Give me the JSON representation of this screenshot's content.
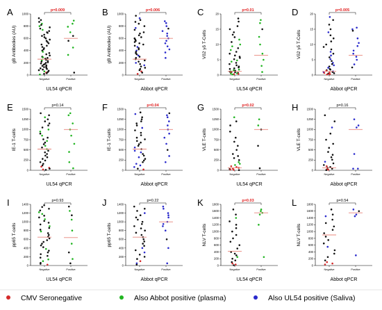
{
  "colors": {
    "red": "#d42a2a",
    "green": "#22b522",
    "blue": "#2a2acc",
    "black": "#111111",
    "median_line": "#e8847a",
    "sig_text": "#e01c1c",
    "nonsig_text": "#000000"
  },
  "legend": [
    {
      "label": "CMV Seronegative",
      "color": "red"
    },
    {
      "label": "Also Abbot positive (plasma)",
      "color": "green"
    },
    {
      "label": "Also UL54 positive (Saliva)",
      "color": "blue"
    }
  ],
  "chart_data": [
    {
      "id": "A",
      "type": "scatter",
      "title": "",
      "letter": "A",
      "ylabel": "gB Antibodies (AU)",
      "xlabel": "UL54 qPCR",
      "categories": [
        "Negative",
        "Positive"
      ],
      "ylim": [
        0,
        1000
      ],
      "yticks": [
        0,
        200,
        400,
        600,
        800,
        1000
      ],
      "pvalue": "p=0.009",
      "significant": true,
      "pos_color": "green",
      "medians": [
        260,
        600
      ],
      "series": [
        {
          "name": "Negative",
          "values": [
            930,
            900,
            870,
            840,
            820,
            800,
            780,
            760,
            740,
            720,
            700,
            690,
            660,
            640,
            620,
            600,
            580,
            560,
            540,
            520,
            500,
            480,
            460,
            440,
            420,
            400,
            380,
            360,
            340,
            320,
            300,
            290,
            280,
            270,
            260,
            250,
            240,
            230,
            220,
            210,
            200,
            190,
            180,
            170,
            160,
            150,
            140,
            130,
            120,
            110,
            100,
            90,
            80,
            70,
            60,
            50,
            40,
            30,
            20,
            10
          ]
        },
        {
          "name": "Positive",
          "values": [
            890,
            840,
            790,
            700,
            640,
            560,
            450,
            330,
            40
          ]
        }
      ]
    },
    {
      "id": "B",
      "type": "scatter",
      "title": "",
      "letter": "B",
      "ylabel": "gB Antibodies (AU)",
      "xlabel": "Abbot qPCR",
      "categories": [
        "Negative",
        "Positive"
      ],
      "ylim": [
        0,
        1000
      ],
      "yticks": [
        0,
        200,
        400,
        600,
        800,
        1000
      ],
      "pvalue": "p=0.006",
      "significant": true,
      "pos_color": "blue",
      "medians": [
        260,
        600
      ],
      "series": [
        {
          "name": "Negative",
          "values": [
            970,
            930,
            900,
            870,
            840,
            800,
            770,
            740,
            700,
            680,
            650,
            620,
            600,
            580,
            560,
            540,
            520,
            500,
            480,
            460,
            440,
            420,
            400,
            380,
            360,
            340,
            320,
            300,
            280,
            260,
            240,
            220,
            200,
            180,
            160,
            140,
            120,
            100,
            80,
            60,
            40,
            20
          ]
        },
        {
          "name": "Positive",
          "values": [
            880,
            850,
            800,
            760,
            720,
            680,
            640,
            600,
            560,
            520,
            470,
            420,
            370,
            280
          ]
        }
      ]
    },
    {
      "id": "C",
      "type": "scatter",
      "title": "",
      "letter": "C",
      "ylabel": "Vδ2 γδ T-Cells",
      "xlabel": "UL54 qPCR",
      "categories": [
        "Negative",
        "Positive"
      ],
      "ylim": [
        0,
        20
      ],
      "yticks": [
        0,
        5,
        10,
        15,
        20
      ],
      "pvalue": "p=0.01",
      "significant": true,
      "pos_color": "green",
      "medians": [
        1.2,
        6.5
      ],
      "series": [
        {
          "name": "Negative",
          "values": [
            18.5,
            17.5,
            16,
            15,
            14,
            13.2,
            12.4,
            11.6,
            10.8,
            10,
            9.4,
            8.8,
            8.2,
            7.6,
            7,
            6.4,
            6,
            5.6,
            5.2,
            4.8,
            4.4,
            4,
            3.6,
            3.2,
            2.8,
            2.5,
            2.2,
            2,
            1.8,
            1.6,
            1.4,
            1.2,
            1.1,
            1,
            0.9,
            0.8,
            0.7,
            0.6,
            0.5,
            0.4,
            0.3,
            0.2
          ]
        },
        {
          "name": "Positive",
          "values": [
            18,
            17,
            15,
            12.5,
            10,
            7,
            5,
            3,
            1
          ]
        }
      ]
    },
    {
      "id": "D",
      "type": "scatter",
      "title": "",
      "letter": "D",
      "ylabel": "Vδ2 γδ T-Cells",
      "xlabel": "Abbot qPCR",
      "categories": [
        "Negative",
        "Positive"
      ],
      "ylim": [
        0,
        20
      ],
      "yticks": [
        0,
        5,
        10,
        15,
        20
      ],
      "pvalue": "p=0.005",
      "significant": true,
      "pos_color": "blue",
      "medians": [
        1.2,
        6.5
      ],
      "series": [
        {
          "name": "Negative",
          "values": [
            19,
            18,
            16.5,
            15,
            14,
            13,
            12,
            11,
            10,
            9.2,
            8.4,
            7.6,
            7,
            6.4,
            5.8,
            5.2,
            4.6,
            4,
            3.6,
            3.2,
            2.8,
            2.4,
            2,
            1.8,
            1.6,
            1.4,
            1.2,
            1,
            0.9,
            0.8,
            0.7,
            0.6,
            0.5,
            0.4,
            0.3,
            0.2
          ]
        },
        {
          "name": "Positive",
          "values": [
            15.5,
            15,
            14.5,
            12,
            10.5,
            9.5,
            8,
            7,
            6,
            5,
            3.5,
            2.5
          ]
        }
      ]
    },
    {
      "id": "E",
      "type": "scatter",
      "title": "",
      "letter": "E",
      "ylabel": "IE-1 T-cells",
      "xlabel": "UL54 qPCR",
      "categories": [
        "Negative",
        "Positive"
      ],
      "ylim": [
        0,
        1500
      ],
      "yticks": [
        0,
        250,
        500,
        750,
        1000,
        1250,
        1500
      ],
      "pvalue": "p=0.14",
      "significant": false,
      "pos_color": "green",
      "medians": [
        520,
        1000
      ],
      "series": [
        {
          "name": "Negative",
          "values": [
            1400,
            1350,
            1300,
            1250,
            1200,
            1150,
            1100,
            1050,
            1000,
            950,
            900,
            850,
            800,
            760,
            720,
            680,
            640,
            600,
            560,
            520,
            480,
            440,
            400,
            360,
            320,
            280,
            240,
            200,
            160,
            120,
            90,
            60,
            40,
            20,
            10
          ]
        },
        {
          "name": "Positive",
          "values": [
            1400,
            1350,
            1150,
            1000,
            850,
            650,
            450,
            200,
            50
          ]
        }
      ]
    },
    {
      "id": "F",
      "type": "scatter",
      "title": "",
      "letter": "F",
      "ylabel": "IE-1 T-cells",
      "xlabel": "Abbot qPCR",
      "categories": [
        "Negative",
        "Positive"
      ],
      "ylim": [
        0,
        1500
      ],
      "yticks": [
        0,
        250,
        500,
        750,
        1000,
        1250,
        1500
      ],
      "pvalue": "p=0.04",
      "significant": true,
      "pos_color": "blue",
      "medians": [
        520,
        1000
      ],
      "series": [
        {
          "name": "Negative",
          "values": [
            1420,
            1380,
            1300,
            1250,
            1200,
            1150,
            1100,
            1040,
            980,
            920,
            860,
            800,
            760,
            720,
            680,
            640,
            600,
            560,
            520,
            480,
            440,
            400,
            360,
            320,
            280,
            240,
            200,
            160,
            120,
            80,
            40,
            20
          ]
        },
        {
          "name": "Positive",
          "values": [
            1400,
            1350,
            1300,
            1200,
            1100,
            1000,
            900,
            800,
            650,
            500,
            350,
            200
          ]
        }
      ]
    },
    {
      "id": "G",
      "type": "scatter",
      "title": "",
      "letter": "G",
      "ylabel": "VLE T-cells",
      "xlabel": "UL54 qPCR",
      "categories": [
        "Negative",
        "Positive"
      ],
      "ylim": [
        0,
        1500
      ],
      "yticks": [
        0,
        250,
        500,
        750,
        1000,
        1250,
        1500
      ],
      "pvalue": "p=0.02",
      "significant": true,
      "pos_color": "green",
      "medians": [
        60,
        1000
      ],
      "series": [
        {
          "name": "Negative",
          "values": [
            1300,
            1200,
            1100,
            950,
            800,
            700,
            600,
            500,
            400,
            350,
            300,
            250,
            200,
            160,
            130,
            100,
            80,
            60,
            40,
            30,
            20,
            10,
            5
          ]
        },
        {
          "name": "Positive",
          "values": [
            1250,
            1100,
            1000,
            600,
            50
          ]
        }
      ]
    },
    {
      "id": "H",
      "type": "scatter",
      "title": "",
      "letter": "H",
      "ylabel": "VLE T-cells",
      "xlabel": "Abbot qPCR",
      "categories": [
        "Negative",
        "Positive"
      ],
      "ylim": [
        0,
        1500
      ],
      "yticks": [
        0,
        250,
        500,
        750,
        1000,
        1250,
        1500
      ],
      "pvalue": "p=0.16",
      "significant": false,
      "pos_color": "blue",
      "medians": [
        60,
        1000
      ],
      "series": [
        {
          "name": "Negative",
          "values": [
            1350,
            1200,
            1050,
            900,
            750,
            650,
            550,
            450,
            380,
            320,
            260,
            210,
            170,
            130,
            100,
            80,
            60,
            40,
            25,
            15,
            5
          ]
        },
        {
          "name": "Positive",
          "values": [
            1250,
            1100,
            1050,
            400,
            40,
            40
          ]
        }
      ]
    },
    {
      "id": "I",
      "type": "scatter",
      "title": "",
      "letter": "I",
      "ylabel": "pp65 T-cells",
      "xlabel": "UL54 qPCR",
      "categories": [
        "Negative",
        "Positive"
      ],
      "ylim": [
        0,
        1400
      ],
      "yticks": [
        0,
        200,
        400,
        600,
        800,
        1000,
        1200,
        1400
      ],
      "pvalue": "p=0.93",
      "significant": false,
      "pos_color": "green",
      "medians": [
        650,
        640
      ],
      "series": [
        {
          "name": "Negative",
          "values": [
            1380,
            1340,
            1300,
            1260,
            1220,
            1180,
            1140,
            1100,
            1060,
            1020,
            980,
            940,
            900,
            860,
            820,
            780,
            740,
            700,
            660,
            620,
            580,
            540,
            500,
            460,
            420,
            380,
            340,
            300,
            260,
            220,
            180,
            140,
            100,
            60,
            40,
            20
          ]
        },
        {
          "name": "Positive",
          "values": [
            1350,
            1250,
            1150,
            1050,
            800,
            500,
            300,
            150,
            50
          ]
        }
      ]
    },
    {
      "id": "J",
      "type": "scatter",
      "title": "",
      "letter": "J",
      "ylabel": "pp65 T-cells",
      "xlabel": "Abbot qPCR",
      "categories": [
        "Negative",
        "Positive"
      ],
      "ylim": [
        0,
        1400
      ],
      "yticks": [
        0,
        200,
        400,
        600,
        800,
        1000,
        1200,
        1400
      ],
      "pvalue": "p=0.22",
      "significant": false,
      "pos_color": "blue",
      "medians": [
        650,
        1000
      ],
      "series": [
        {
          "name": "Negative",
          "values": [
            1350,
            1300,
            1250,
            1200,
            1150,
            1100,
            1050,
            1000,
            950,
            900,
            850,
            800,
            750,
            700,
            650,
            600,
            550,
            500,
            450,
            400,
            350,
            300,
            250,
            200,
            150,
            100,
            50,
            20
          ]
        },
        {
          "name": "Positive",
          "values": [
            1350,
            1300,
            1200,
            1150,
            1100,
            1000,
            950,
            900,
            800,
            600,
            400,
            50
          ]
        }
      ]
    },
    {
      "id": "K",
      "type": "scatter",
      "title": "",
      "letter": "K",
      "ylabel": "NLV T-cells",
      "xlabel": "UL54 qPCR",
      "categories": [
        "Negative",
        "Positive"
      ],
      "ylim": [
        0,
        1800
      ],
      "yticks": [
        0,
        200,
        400,
        600,
        800,
        1000,
        1200,
        1400,
        1600,
        1800
      ],
      "pvalue": "p=0.03",
      "significant": true,
      "pos_color": "green",
      "medians": [
        420,
        1550
      ],
      "series": [
        {
          "name": "Negative",
          "values": [
            1650,
            1500,
            1400,
            1300,
            1200,
            1100,
            1000,
            900,
            800,
            700,
            600,
            500,
            400,
            350,
            300,
            250,
            200,
            150,
            100,
            60,
            30,
            10
          ]
        },
        {
          "name": "Positive",
          "values": [
            1650,
            1600,
            1550,
            1500,
            1200,
            250
          ]
        }
      ]
    },
    {
      "id": "L",
      "type": "scatter",
      "title": "",
      "letter": "L",
      "ylabel": "NLV T-cells",
      "xlabel": "Abbot qPCR",
      "categories": [
        "Negative",
        "Positive"
      ],
      "ylim": [
        0,
        1800
      ],
      "yticks": [
        0,
        200,
        400,
        600,
        800,
        1000,
        1200,
        1400,
        1600,
        1800
      ],
      "pvalue": "p=0.54",
      "significant": false,
      "pos_color": "blue",
      "medians": [
        900,
        1550
      ],
      "series": [
        {
          "name": "Negative",
          "values": [
            1650,
            1500,
            1450,
            1350,
            1250,
            1150,
            1050,
            950,
            850,
            750,
            650,
            550,
            450,
            350,
            250,
            150,
            100,
            60,
            30
          ]
        },
        {
          "name": "Positive",
          "values": [
            1650,
            1600,
            1500,
            1450,
            300
          ]
        }
      ]
    }
  ]
}
